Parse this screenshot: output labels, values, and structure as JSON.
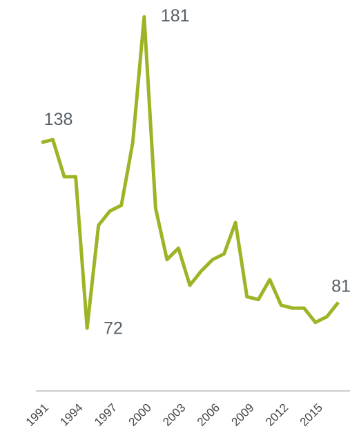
{
  "chart_data": {
    "type": "line",
    "x": [
      1991,
      1992,
      1993,
      1994,
      1995,
      1996,
      1997,
      1998,
      1999,
      2000,
      2001,
      2002,
      2003,
      2004,
      2005,
      2006,
      2007,
      2008,
      2009,
      2010,
      2011,
      2012,
      2013,
      2014,
      2015,
      2016,
      2017
    ],
    "series": [
      {
        "color": "#9cb526",
        "values": [
          137,
          138,
          125,
          125,
          72,
          108,
          113,
          115,
          137,
          181,
          114,
          96,
          100,
          87,
          92,
          96,
          98,
          109,
          83,
          82,
          89,
          80,
          79,
          79,
          74,
          76,
          81
        ]
      }
    ],
    "data_labels": [
      1,
      4,
      9,
      26
    ],
    "xlim": [
      1991,
      2017
    ],
    "xticks": [
      1991,
      1994,
      1997,
      2000,
      2003,
      2006,
      2009,
      2012,
      2015
    ],
    "ylim": [
      50,
      184
    ]
  }
}
